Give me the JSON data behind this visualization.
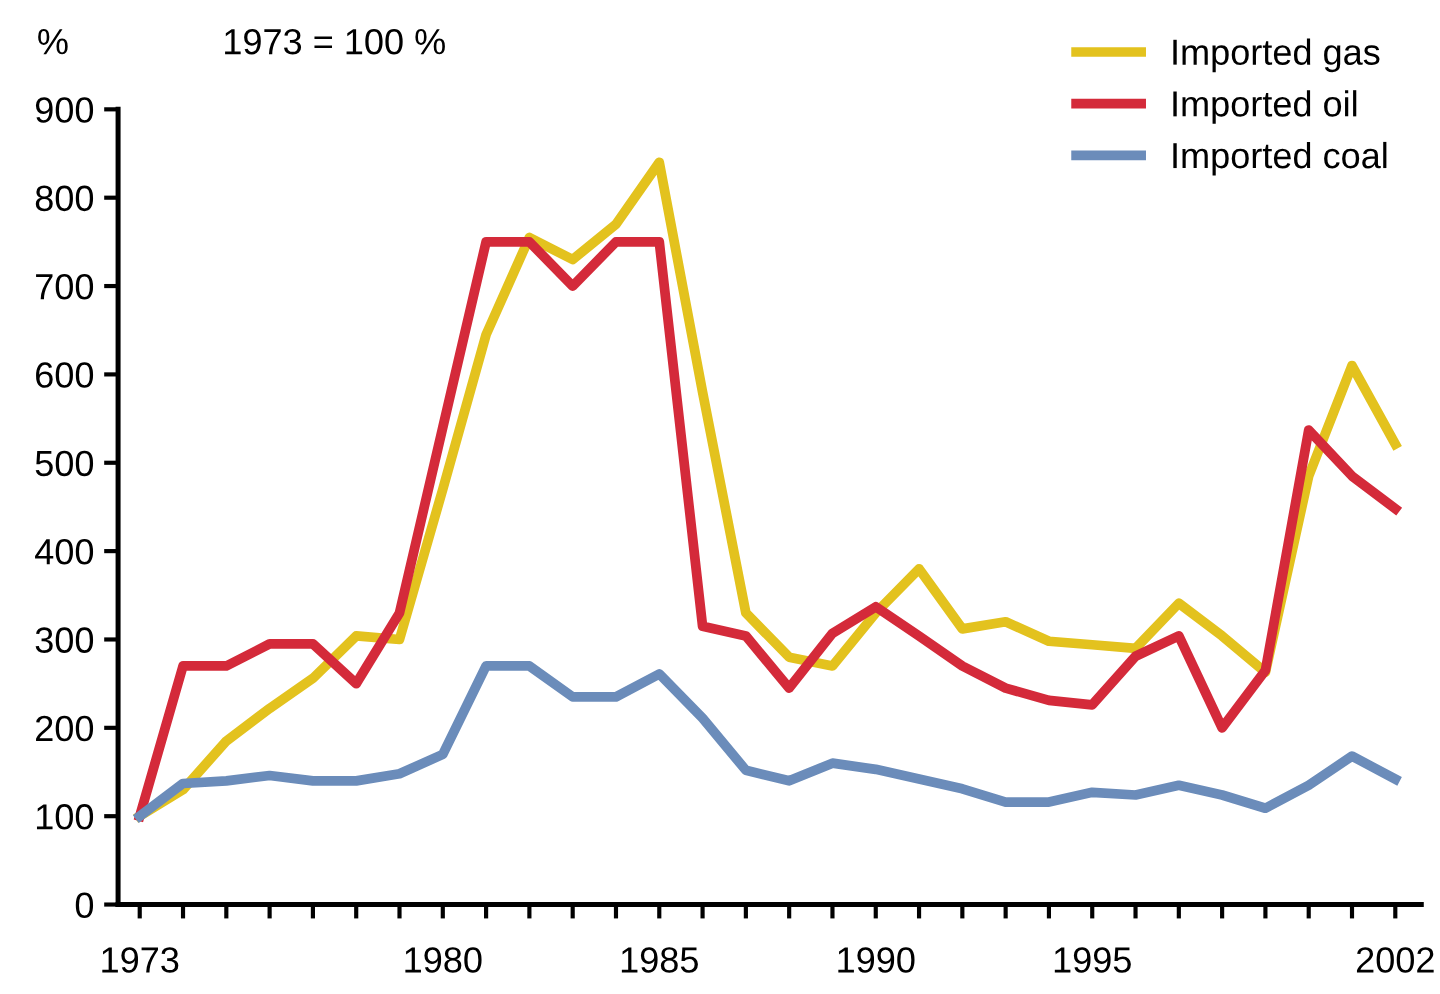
{
  "chart_data": {
    "type": "line",
    "subtitle": "1973 = 100 %",
    "ylabel": "%",
    "x": [
      1973,
      1974,
      1975,
      1976,
      1977,
      1978,
      1979,
      1980,
      1981,
      1982,
      1983,
      1984,
      1985,
      1986,
      1987,
      1988,
      1989,
      1990,
      1991,
      1992,
      1993,
      1994,
      1995,
      1996,
      1997,
      1998,
      1999,
      2000,
      2001,
      2002
    ],
    "series": [
      {
        "name": "Imported gas",
        "color": "#e3c21e",
        "values": [
          100,
          130,
          185,
          222,
          256,
          304,
          300,
          470,
          645,
          755,
          730,
          770,
          840,
          580,
          330,
          280,
          270,
          330,
          380,
          312,
          320,
          298,
          294,
          290,
          341,
          304,
          263,
          485,
          610,
          521
        ]
      },
      {
        "name": "Imported oil",
        "color": "#d42a3a",
        "values": [
          100,
          270,
          270,
          295,
          295,
          250,
          330,
          540,
          750,
          750,
          700,
          750,
          750,
          315,
          304,
          245,
          307,
          337,
          304,
          270,
          245,
          231,
          226,
          281,
          304,
          200,
          265,
          537,
          485,
          448
        ]
      },
      {
        "name": "Imported coal",
        "color": "#6b8cba",
        "values": [
          100,
          137,
          140,
          146,
          140,
          140,
          148,
          170,
          270,
          270,
          235,
          235,
          261,
          211,
          152,
          140,
          160,
          153,
          142,
          131,
          116,
          116,
          127,
          124,
          135,
          124,
          109,
          135,
          168,
          142
        ]
      }
    ],
    "xlim": [
      1972.5,
      2002.6
    ],
    "xticks": [
      1973,
      {
        "value": 1974,
        "label": null
      },
      {
        "value": 1975,
        "label": null
      },
      {
        "value": 1976,
        "label": null
      },
      {
        "value": 1977,
        "label": null
      },
      {
        "value": 1978,
        "label": null
      },
      {
        "value": 1979,
        "label": null
      },
      1980,
      {
        "value": 1981,
        "label": null
      },
      {
        "value": 1982,
        "label": null
      },
      {
        "value": 1983,
        "label": null
      },
      {
        "value": 1984,
        "label": null
      },
      1985,
      {
        "value": 1986,
        "label": null
      },
      {
        "value": 1987,
        "label": null
      },
      {
        "value": 1988,
        "label": null
      },
      {
        "value": 1989,
        "label": null
      },
      1990,
      {
        "value": 1991,
        "label": null
      },
      {
        "value": 1992,
        "label": null
      },
      {
        "value": 1993,
        "label": null
      },
      {
        "value": 1994,
        "label": null
      },
      1995,
      {
        "value": 1996,
        "label": null
      },
      {
        "value": 1997,
        "label": null
      },
      {
        "value": 1998,
        "label": null
      },
      {
        "value": 1999,
        "label": null
      },
      {
        "value": 2000,
        "label": null
      },
      {
        "value": 2001,
        "label": null
      },
      2002
    ],
    "ylim": [
      0,
      900
    ],
    "yticks": [
      0,
      100,
      200,
      300,
      400,
      500,
      600,
      700,
      800,
      900
    ],
    "grid": false,
    "legend": "top right",
    "marker": "none",
    "line_style": "solid"
  }
}
